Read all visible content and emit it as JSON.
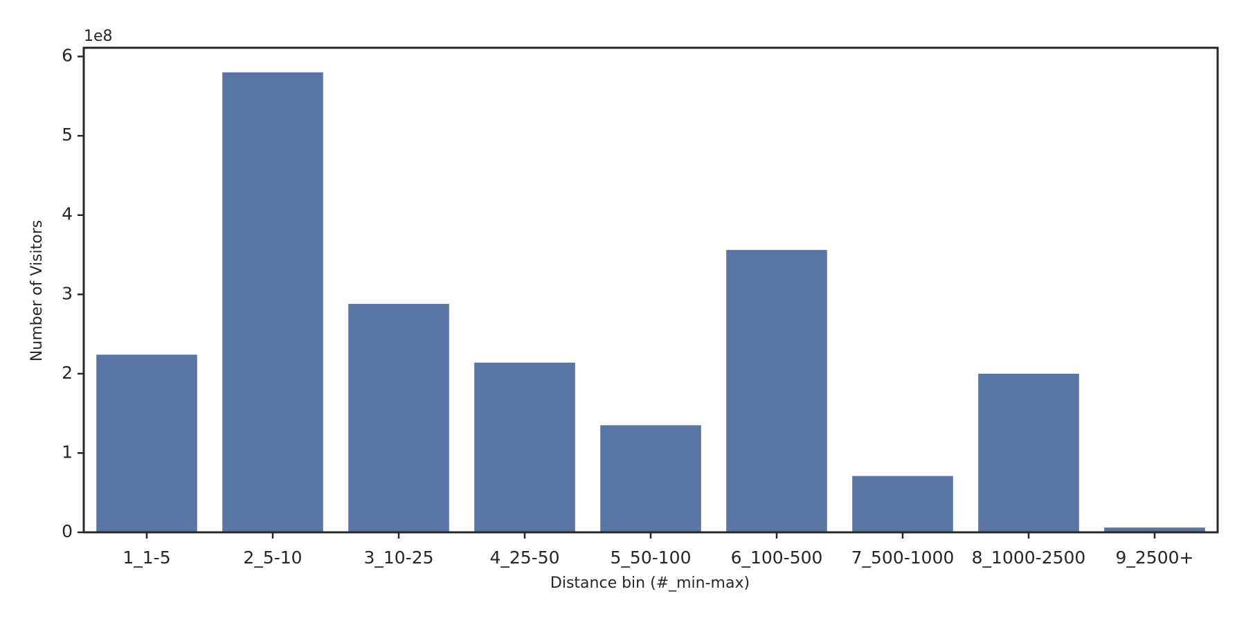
{
  "chart_data": {
    "type": "bar",
    "x_label": "Distance bin (#_min-max)",
    "y_label": "Number of Visitors",
    "offset_label": "1e8",
    "categories": [
      "1_1-5",
      "2_5-10",
      "3_10-25",
      "4_25-50",
      "5_50-100",
      "6_100-500",
      "7_500-1000",
      "8_1000-2500",
      "9_2500+"
    ],
    "values": [
      2.24,
      5.8,
      2.88,
      2.14,
      1.35,
      3.56,
      0.71,
      2.0,
      0.06
    ],
    "color": "#5975a4",
    "ylim": [
      0,
      6.11
    ],
    "yticks": [
      0,
      1,
      2,
      3,
      4,
      5,
      6
    ],
    "grid": false
  }
}
